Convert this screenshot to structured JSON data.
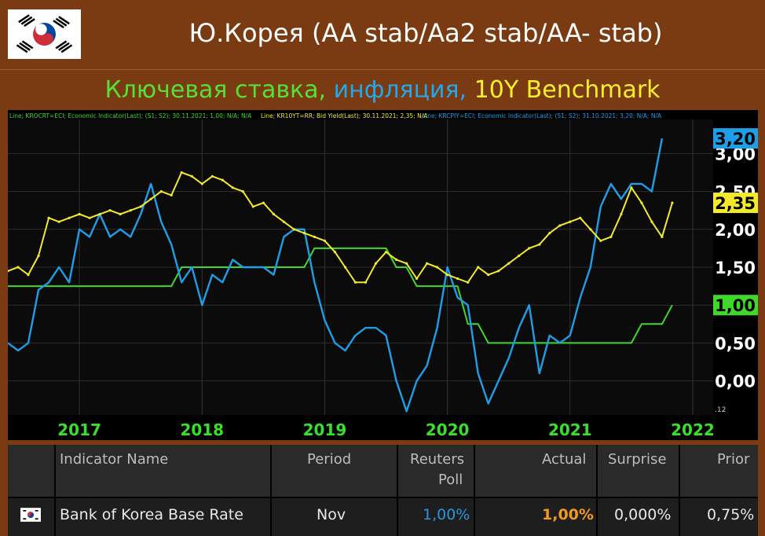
{
  "header": {
    "title": "Ю.Корея (AA stab/Aa2 stab/AA- stab)"
  },
  "subtitle": {
    "part1": "Ключевая ставка, ",
    "part2": "инфляция, ",
    "part3": "10Y Benchmark"
  },
  "legend": {
    "s1": "Line; KROCRT=ECI; Economic Indicator(Last); (S1; S2); 30.11.2021; 1,00; N/A; N/A",
    "s2": "Line; KR10YT=RR; Bid Yield(Last); 30.11.2021; 2,35; N/A",
    "s3": "Line; KRCPIY=ECI; Economic Indicator(Last); (S1; S2); 31.10.2021; 3,20; N/A; N/A"
  },
  "colors": {
    "policy": "#3fd92a",
    "inflation": "#1f9ee8",
    "yield": "#f3ea2c",
    "year_label": "#38e02a",
    "axis_label": "#ffffff"
  },
  "chart_data": {
    "type": "line",
    "ylim": [
      -0.45,
      3.45
    ],
    "xlim": [
      "2016-06",
      "2022-03"
    ],
    "x_ticks": [
      "2017",
      "2018",
      "2019",
      "2020",
      "2021",
      "2022"
    ],
    "y_ticks": [
      "3,00",
      "2,50",
      "2,00",
      "1,50",
      "1,00",
      "0,50",
      "0,00"
    ],
    "axis_corner_label": ".12",
    "last_value_labels": {
      "inflation": "3,20",
      "yield": "2,35",
      "policy": "1,00"
    },
    "series": [
      {
        "key": "policy",
        "x": [
          "2016-06",
          "2017-10",
          "2017-11",
          "2018-11",
          "2018-12",
          "2019-07",
          "2019-08",
          "2019-09",
          "2019-10",
          "2020-02",
          "2020-03",
          "2020-04",
          "2020-05",
          "2021-07",
          "2021-08",
          "2021-10",
          "2021-11"
        ],
        "y": [
          1.25,
          1.25,
          1.5,
          1.5,
          1.75,
          1.75,
          1.5,
          1.5,
          1.25,
          1.25,
          0.75,
          0.75,
          0.5,
          0.5,
          0.75,
          0.75,
          1.0
        ]
      },
      {
        "key": "inflation",
        "x": [
          "2016-06",
          "2016-07",
          "2016-08",
          "2016-09",
          "2016-10",
          "2016-11",
          "2016-12",
          "2017-01",
          "2017-02",
          "2017-03",
          "2017-04",
          "2017-05",
          "2017-06",
          "2017-07",
          "2017-08",
          "2017-09",
          "2017-10",
          "2017-11",
          "2017-12",
          "2018-01",
          "2018-02",
          "2018-03",
          "2018-04",
          "2018-05",
          "2018-06",
          "2018-07",
          "2018-08",
          "2018-09",
          "2018-10",
          "2018-11",
          "2018-12",
          "2019-01",
          "2019-02",
          "2019-03",
          "2019-04",
          "2019-05",
          "2019-06",
          "2019-07",
          "2019-08",
          "2019-09",
          "2019-10",
          "2019-11",
          "2019-12",
          "2020-01",
          "2020-02",
          "2020-03",
          "2020-04",
          "2020-05",
          "2020-06",
          "2020-07",
          "2020-08",
          "2020-09",
          "2020-10",
          "2020-11",
          "2020-12",
          "2021-01",
          "2021-02",
          "2021-03",
          "2021-04",
          "2021-05",
          "2021-06",
          "2021-07",
          "2021-08",
          "2021-09",
          "2021-10"
        ],
        "y": [
          0.5,
          0.4,
          0.5,
          1.2,
          1.3,
          1.5,
          1.3,
          2.0,
          1.9,
          2.2,
          1.9,
          2.0,
          1.9,
          2.2,
          2.6,
          2.1,
          1.8,
          1.3,
          1.5,
          1.0,
          1.4,
          1.3,
          1.6,
          1.5,
          1.5,
          1.5,
          1.4,
          1.9,
          2.0,
          2.0,
          1.3,
          0.8,
          0.5,
          0.4,
          0.6,
          0.7,
          0.7,
          0.6,
          0.0,
          -0.4,
          0.0,
          0.2,
          0.7,
          1.5,
          1.1,
          1.0,
          0.1,
          -0.3,
          0.0,
          0.3,
          0.7,
          1.0,
          0.1,
          0.6,
          0.5,
          0.6,
          1.1,
          1.5,
          2.3,
          2.6,
          2.4,
          2.6,
          2.6,
          2.5,
          3.2
        ]
      },
      {
        "key": "yield",
        "x": [
          "2016-06",
          "2016-07",
          "2016-08",
          "2016-09",
          "2016-10",
          "2016-11",
          "2016-12",
          "2017-01",
          "2017-02",
          "2017-03",
          "2017-04",
          "2017-05",
          "2017-06",
          "2017-07",
          "2017-08",
          "2017-09",
          "2017-10",
          "2017-11",
          "2017-12",
          "2018-01",
          "2018-02",
          "2018-03",
          "2018-04",
          "2018-05",
          "2018-06",
          "2018-07",
          "2018-08",
          "2018-09",
          "2018-10",
          "2018-11",
          "2018-12",
          "2019-01",
          "2019-02",
          "2019-03",
          "2019-04",
          "2019-05",
          "2019-06",
          "2019-07",
          "2019-08",
          "2019-09",
          "2019-10",
          "2019-11",
          "2019-12",
          "2020-01",
          "2020-02",
          "2020-03",
          "2020-04",
          "2020-05",
          "2020-06",
          "2020-07",
          "2020-08",
          "2020-09",
          "2020-10",
          "2020-11",
          "2020-12",
          "2021-01",
          "2021-02",
          "2021-03",
          "2021-04",
          "2021-05",
          "2021-06",
          "2021-07",
          "2021-08",
          "2021-09",
          "2021-10",
          "2021-11"
        ],
        "y": [
          1.45,
          1.5,
          1.4,
          1.65,
          2.15,
          2.1,
          2.15,
          2.2,
          2.15,
          2.2,
          2.25,
          2.2,
          2.25,
          2.3,
          2.4,
          2.5,
          2.45,
          2.75,
          2.7,
          2.6,
          2.7,
          2.65,
          2.55,
          2.5,
          2.3,
          2.35,
          2.2,
          2.1,
          2.0,
          1.95,
          1.9,
          1.85,
          1.7,
          1.5,
          1.3,
          1.3,
          1.55,
          1.7,
          1.6,
          1.55,
          1.35,
          1.55,
          1.5,
          1.4,
          1.35,
          1.3,
          1.5,
          1.4,
          1.45,
          1.55,
          1.65,
          1.75,
          1.8,
          1.95,
          2.05,
          2.1,
          2.15,
          2.0,
          1.85,
          1.9,
          2.2,
          2.55,
          2.35,
          2.1,
          1.9,
          2.35
        ]
      }
    ]
  },
  "table": {
    "headers": {
      "name": "Indicator Name",
      "period": "Period",
      "poll1": "Reuters",
      "poll2": "Poll",
      "actual": "Actual",
      "surprise": "Surprise",
      "prior": "Prior"
    },
    "row": {
      "name": "Bank of Korea Base Rate",
      "period": "Nov",
      "poll": "1,00%",
      "actual": "1,00%",
      "surprise": "0,000%",
      "prior": "0,75%"
    },
    "colors": {
      "poll": "#2a95e0",
      "actual": "#f39a1c",
      "text": "#e8e8e8"
    }
  }
}
